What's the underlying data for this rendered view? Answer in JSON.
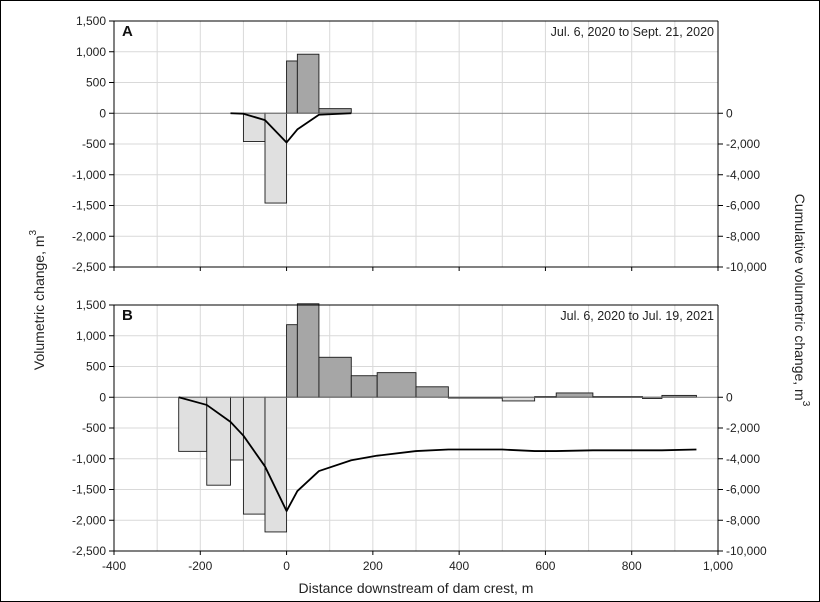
{
  "figure": {
    "xlabel": "Distance downstream of dam crest, m",
    "ylabel": "Volumetric change,",
    "ylabel_unit": "m",
    "y2label": "Cumulative volumetric change,",
    "y2label_unit": "m",
    "unit_exponent": "3"
  },
  "colors": {
    "positive_bar": "#a6a6a6",
    "negative_bar": "#e0e0e0",
    "bar_edge": "#1a1a1a",
    "cumulative_line": "#000000",
    "grid": "#d9d9d9"
  },
  "chart_data": [
    {
      "type": "bar",
      "panel": "A",
      "period": "Jul. 6, 2020 to Sept. 21, 2020",
      "xlim": [
        -400,
        1000
      ],
      "xticks": [
        -400,
        -200,
        0,
        200,
        400,
        600,
        800,
        1000
      ],
      "xtick_labels": [
        "-400",
        "-200",
        "0",
        "200",
        "400",
        "600",
        "800",
        "1,000"
      ],
      "ylim": [
        -2500,
        1500
      ],
      "yticks": [
        "1,500",
        "1,000",
        "500",
        "0",
        "-500",
        "-1,000",
        "-1,500",
        "-2,000",
        "-2,500"
      ],
      "yticks_values": [
        1500,
        1000,
        500,
        0,
        -500,
        -1000,
        -1500,
        -2000,
        -2500
      ],
      "y2lim": [
        -10000,
        6000
      ],
      "y2ticks": [
        "0",
        "-2,000",
        "-4,000",
        "-6,000",
        "-8,000",
        "-10,000"
      ],
      "y2ticks_values": [
        0,
        -2000,
        -4000,
        -6000,
        -8000,
        -10000
      ],
      "grid": true,
      "bars": [
        {
          "x0": -100,
          "x1": -50,
          "value": -460
        },
        {
          "x0": -50,
          "x1": 0,
          "value": -1460
        },
        {
          "x0": 0,
          "x1": 25,
          "value": 850
        },
        {
          "x0": 25,
          "x1": 75,
          "value": 960
        },
        {
          "x0": 75,
          "x1": 150,
          "value": 75
        }
      ],
      "cumulative": {
        "name": "Cumulative volumetric change",
        "x": [
          -130,
          -100,
          -50,
          0,
          25,
          75,
          150
        ],
        "y": [
          0,
          -30,
          -450,
          -1900,
          -1050,
          -100,
          0
        ]
      }
    },
    {
      "type": "bar",
      "panel": "B",
      "period": "Jul. 6, 2020 to Jul. 19, 2021",
      "xlim": [
        -400,
        1000
      ],
      "xticks": [
        -400,
        -200,
        0,
        200,
        400,
        600,
        800,
        1000
      ],
      "xtick_labels": [
        "-400",
        "-200",
        "0",
        "200",
        "400",
        "600",
        "800",
        "1,000"
      ],
      "ylim": [
        -2500,
        1500
      ],
      "yticks": [
        "1,500",
        "1,000",
        "500",
        "0",
        "-500",
        "-1,000",
        "-1,500",
        "-2,000",
        "-2,500"
      ],
      "yticks_values": [
        1500,
        1000,
        500,
        0,
        -500,
        -1000,
        -1500,
        -2000,
        -2500
      ],
      "y2lim": [
        -10000,
        6000
      ],
      "y2ticks": [
        "0",
        "-2,000",
        "-4,000",
        "-6,000",
        "-8,000",
        "-10,000"
      ],
      "y2ticks_values": [
        0,
        -2000,
        -4000,
        -6000,
        -8000,
        -10000
      ],
      "grid": true,
      "bars": [
        {
          "x0": -250,
          "x1": -185,
          "value": -880
        },
        {
          "x0": -185,
          "x1": -130,
          "value": -1430
        },
        {
          "x0": -130,
          "x1": -100,
          "value": -1020
        },
        {
          "x0": -100,
          "x1": -50,
          "value": -1900
        },
        {
          "x0": -50,
          "x1": 0,
          "value": -2190
        },
        {
          "x0": 0,
          "x1": 25,
          "value": 1180
        },
        {
          "x0": 25,
          "x1": 75,
          "value": 1520
        },
        {
          "x0": 75,
          "x1": 150,
          "value": 650
        },
        {
          "x0": 150,
          "x1": 210,
          "value": 350
        },
        {
          "x0": 210,
          "x1": 300,
          "value": 400
        },
        {
          "x0": 300,
          "x1": 375,
          "value": 170
        },
        {
          "x0": 375,
          "x1": 500,
          "value": -10
        },
        {
          "x0": 500,
          "x1": 575,
          "value": -60
        },
        {
          "x0": 575,
          "x1": 625,
          "value": 10
        },
        {
          "x0": 625,
          "x1": 710,
          "value": 70
        },
        {
          "x0": 710,
          "x1": 825,
          "value": 10
        },
        {
          "x0": 825,
          "x1": 870,
          "value": -20
        },
        {
          "x0": 870,
          "x1": 950,
          "value": 30
        }
      ],
      "cumulative": {
        "name": "Cumulative volumetric change",
        "x": [
          -250,
          -185,
          -130,
          -100,
          -50,
          0,
          25,
          75,
          150,
          210,
          300,
          375,
          500,
          575,
          625,
          710,
          825,
          870,
          950
        ],
        "y": [
          0,
          -500,
          -1600,
          -2500,
          -4500,
          -7400,
          -6100,
          -4800,
          -4100,
          -3800,
          -3500,
          -3400,
          -3400,
          -3500,
          -3500,
          -3450,
          -3450,
          -3450,
          -3400
        ]
      }
    }
  ]
}
